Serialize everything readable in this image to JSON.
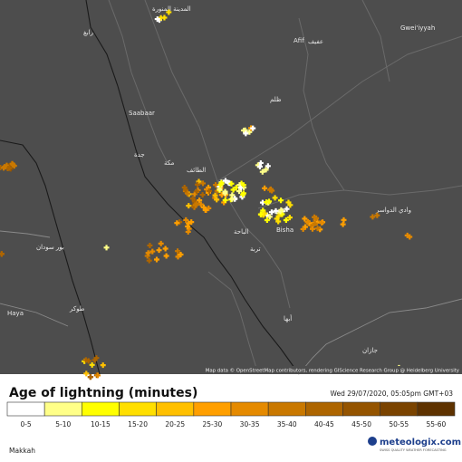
{
  "map": {
    "labels": [
      "المدينة المنورة",
      "رابغ",
      "Saabaar",
      "ظلم",
      "Afif",
      "عفيف",
      "Gwei'iyyah",
      "جدة",
      "مكة",
      "الطائف",
      "بور سودان",
      "الباحة",
      "Bisha",
      "تربة",
      "وادي الدواسر",
      "طوكر",
      "Haya",
      "أبها",
      "جازان"
    ],
    "attribution": "Map data © OpenStreetMap contributors, rendering GIScience Research Group @ Heidelberg University"
  },
  "legend": {
    "title": "Age of lightning (minutes)",
    "timestamp": "Wed 29/07/2020, 05:05pm GMT+03",
    "bins": [
      {
        "label": "0-5",
        "color": "#ffffff"
      },
      {
        "label": "5-10",
        "color": "#ffff88"
      },
      {
        "label": "10-15",
        "color": "#ffff00"
      },
      {
        "label": "15-20",
        "color": "#ffdf00"
      },
      {
        "label": "20-25",
        "color": "#ffc000"
      },
      {
        "label": "25-30",
        "color": "#ff9f00"
      },
      {
        "label": "30-35",
        "color": "#e58a00"
      },
      {
        "label": "35-40",
        "color": "#c97800"
      },
      {
        "label": "40-45",
        "color": "#ad6500"
      },
      {
        "label": "45-50",
        "color": "#945400"
      },
      {
        "label": "50-55",
        "color": "#7a4300"
      },
      {
        "label": "55-60",
        "color": "#5e3200"
      }
    ]
  },
  "footer": {
    "location": "Makkah",
    "brand": "meteologix.com",
    "tagline": "SWISS QUALITY WEATHER FORECASTING"
  }
}
